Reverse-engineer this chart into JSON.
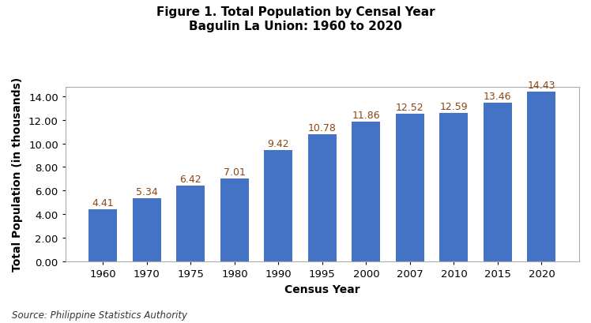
{
  "title_line1": "Figure 1. Total Population by Censal Year",
  "title_line2": "Bagulin La Union: 1960 to 2020",
  "categories": [
    "1960",
    "1970",
    "1975",
    "1980",
    "1990",
    "1995",
    "2000",
    "2007",
    "2010",
    "2015",
    "2020"
  ],
  "values": [
    4.41,
    5.34,
    6.42,
    7.01,
    9.42,
    10.78,
    11.86,
    12.52,
    12.59,
    13.46,
    14.43
  ],
  "bar_color": "#4472C4",
  "xlabel": "Census Year",
  "ylabel": "Total Population (in thousands)",
  "ylim": [
    0,
    14.8
  ],
  "yticks": [
    0.0,
    2.0,
    4.0,
    6.0,
    8.0,
    10.0,
    12.0,
    14.0
  ],
  "source_text": "Source: Philippine Statistics Authority",
  "title_fontsize": 11,
  "label_fontsize": 10,
  "tick_fontsize": 9.5,
  "bar_label_fontsize": 9,
  "source_fontsize": 8.5,
  "background_color": "#ffffff",
  "plot_bg_color": "#ffffff",
  "bar_label_color": "#8B4513",
  "spine_color": "#aaaaaa"
}
